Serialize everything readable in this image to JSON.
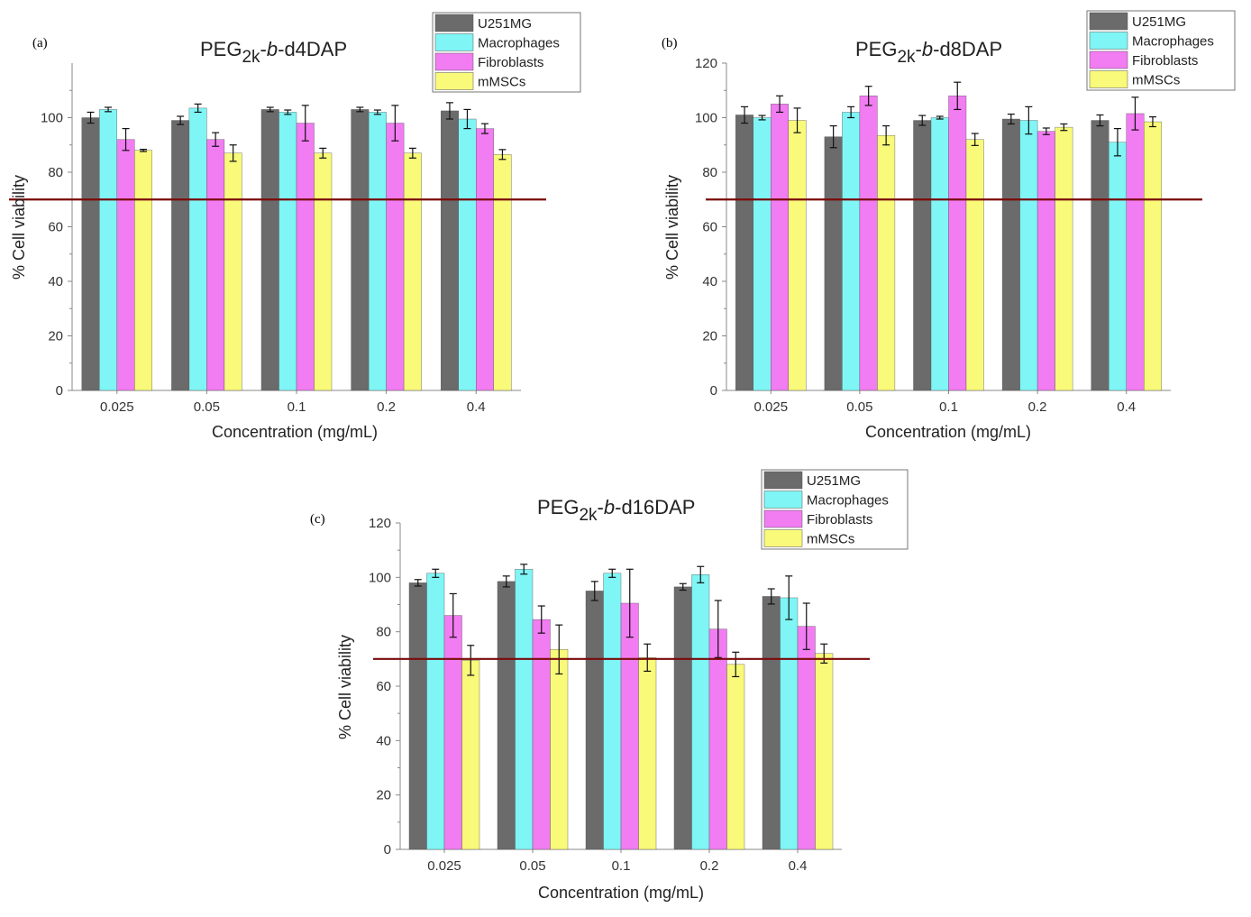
{
  "figure": {
    "panel_labels": [
      "(a)",
      "(b)",
      "(c)"
    ]
  },
  "legend": {
    "entries": [
      "U251MG",
      "Macrophages",
      "Fibroblasts",
      "mMSCs"
    ]
  },
  "colors": {
    "U251MG": "#6b6b6b",
    "Macrophages": "#7ff5f5",
    "Fibroblasts": "#f27cf2",
    "mMSCs": "#f9f97a",
    "threshold": "#7a0a0a",
    "axis": "#888888"
  },
  "chart_data": [
    {
      "type": "bar",
      "panel": "(a)",
      "title": {
        "base": "PEG",
        "sub": "2k",
        "sep": "-",
        "ital": "b",
        "rest": "-d4DAP"
      },
      "xlabel": "Concentration (mg/mL)",
      "ylabel": "% Cell viability",
      "categories": [
        "0.025",
        "0.05",
        "0.1",
        "0.2",
        "0.4"
      ],
      "ylim": [
        0,
        120
      ],
      "yticks": [
        "0",
        "20",
        "40",
        "60",
        "80",
        "100"
      ],
      "threshold": 70,
      "series": [
        {
          "name": "U251MG",
          "values": [
            100,
            99,
            103,
            103,
            102.5
          ],
          "errors": [
            2,
            1.5,
            0.8,
            0.8,
            3
          ]
        },
        {
          "name": "Macrophages",
          "values": [
            103,
            103.5,
            102,
            102,
            99.5
          ],
          "errors": [
            0.8,
            1.5,
            0.8,
            0.8,
            3.5
          ]
        },
        {
          "name": "Fibroblasts",
          "values": [
            92,
            92,
            98,
            98,
            96
          ],
          "errors": [
            4,
            2.5,
            6.5,
            6.5,
            1.8
          ]
        },
        {
          "name": "mMSCs",
          "values": [
            88,
            87,
            87,
            87,
            86.5
          ],
          "errors": [
            0.4,
            3,
            1.8,
            1.8,
            1.8
          ]
        }
      ]
    },
    {
      "type": "bar",
      "panel": "(b)",
      "title": {
        "base": "PEG",
        "sub": "2k",
        "sep": "-",
        "ital": "b",
        "rest": "-d8DAP"
      },
      "xlabel": "Concentration (mg/mL)",
      "ylabel": "% Cell viability",
      "categories": [
        "0.025",
        "0.05",
        "0.1",
        "0.2",
        "0.4"
      ],
      "ylim": [
        0,
        120
      ],
      "yticks": [
        "0",
        "20",
        "40",
        "60",
        "80",
        "100",
        "120"
      ],
      "threshold": 70,
      "series": [
        {
          "name": "U251MG",
          "values": [
            101,
            93,
            99,
            99.5,
            99
          ],
          "errors": [
            3,
            4,
            1.8,
            1.8,
            2
          ]
        },
        {
          "name": "Macrophages",
          "values": [
            100,
            102,
            100,
            99,
            91
          ],
          "errors": [
            0.8,
            2,
            0.5,
            5,
            5
          ]
        },
        {
          "name": "Fibroblasts",
          "values": [
            105,
            108,
            108,
            95,
            101.5
          ],
          "errors": [
            3,
            3.5,
            5,
            1.2,
            6
          ]
        },
        {
          "name": "mMSCs",
          "values": [
            99,
            93.5,
            92,
            96.5,
            98.5
          ],
          "errors": [
            4.5,
            3.5,
            2.2,
            1.2,
            1.8
          ]
        }
      ]
    },
    {
      "type": "bar",
      "panel": "(c)",
      "title": {
        "base": "PEG",
        "sub": "2k",
        "sep": "-",
        "ital": "b",
        "rest": "-d16DAP"
      },
      "xlabel": "Concentration (mg/mL)",
      "ylabel": "% Cell viability",
      "categories": [
        "0.025",
        "0.05",
        "0.1",
        "0.2",
        "0.4"
      ],
      "ylim": [
        0,
        120
      ],
      "yticks": [
        "0",
        "20",
        "40",
        "60",
        "80",
        "100",
        "120"
      ],
      "threshold": 70,
      "series": [
        {
          "name": "U251MG",
          "values": [
            98,
            98.5,
            95,
            96.5,
            93
          ],
          "errors": [
            1.2,
            2,
            3.5,
            1.2,
            2.8
          ]
        },
        {
          "name": "Macrophages",
          "values": [
            101.5,
            103,
            101.5,
            101,
            92.5
          ],
          "errors": [
            1.5,
            1.8,
            1.5,
            3,
            8
          ]
        },
        {
          "name": "Fibroblasts",
          "values": [
            86,
            84.5,
            90.5,
            81,
            82
          ],
          "errors": [
            8,
            5,
            12.5,
            10.5,
            8.5
          ]
        },
        {
          "name": "mMSCs",
          "values": [
            69.5,
            73.5,
            70.5,
            68,
            72
          ],
          "errors": [
            5.5,
            9,
            5,
            4.5,
            3.5
          ]
        }
      ]
    }
  ]
}
